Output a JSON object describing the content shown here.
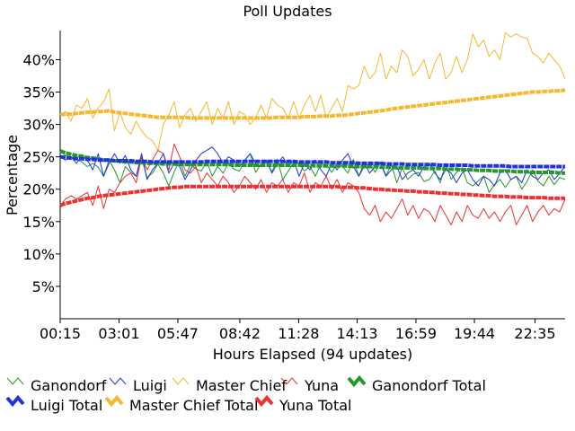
{
  "chart_data": {
    "type": "line",
    "title": "Poll Updates",
    "xlabel": "Hours Elapsed (94 updates)",
    "ylabel": "Percentage",
    "x_tick_labels": [
      "00:15",
      "03:01",
      "05:47",
      "08:42",
      "11:28",
      "14:13",
      "16:59",
      "19:44",
      "22:35"
    ],
    "x_tick_hours": [
      0.25,
      3.0167,
      5.7833,
      8.7,
      11.4667,
      14.2167,
      16.9833,
      19.7333,
      22.5833
    ],
    "x_range_hours": [
      0.25,
      24.0
    ],
    "y_tick_labels": [
      "5%",
      "10%",
      "15%",
      "20%",
      "25%",
      "30%",
      "35%",
      "40%"
    ],
    "y_ticks": [
      5,
      10,
      15,
      20,
      25,
      30,
      35,
      40
    ],
    "ylim": [
      0,
      44.5
    ],
    "grid": false,
    "legend_position": "bottom",
    "series": [
      {
        "name": "Ganondorf",
        "color": "#22992a",
        "style": "thin",
        "values": [
          25.9,
          25.2,
          25.0,
          24.6,
          24.2,
          23.5,
          24.0,
          23.4,
          22.0,
          24.5,
          23.0,
          21.0,
          23.5,
          22.6,
          22.0,
          24.8,
          21.8,
          22.5,
          23.9,
          22.5,
          20.5,
          22.7,
          24.5,
          22.0,
          23.8,
          23.1,
          22.8,
          24.3,
          22.0,
          23.5,
          22.5,
          24.0,
          23.1,
          22.8,
          24.4,
          25.5,
          22.6,
          23.9,
          24.2,
          22.7,
          24.6,
          21.5,
          22.8,
          24.1,
          24.0,
          22.8,
          23.5,
          22.0,
          23.9,
          23.8,
          22.6,
          24.0,
          23.5,
          22.5,
          24.6,
          22.0,
          23.5,
          24.0,
          22.6,
          24.2,
          22.1,
          23.8,
          21.0,
          23.3,
          21.5,
          22.3,
          22.6,
          21.2,
          21.5,
          22.8,
          21.0,
          24.0,
          21.5,
          22.6,
          23.3,
          21.0,
          20.5,
          21.3,
          22.0,
          19.5,
          20.7,
          21.5,
          20.3,
          21.5,
          22.0,
          20.0,
          21.2,
          23.0,
          21.3,
          20.5,
          22.0,
          20.7,
          21.8,
          21.5
        ]
      },
      {
        "name": "Luigi",
        "color": "#2233dd",
        "style": "thin",
        "values": [
          25.0,
          24.5,
          25.0,
          24.0,
          25.2,
          24.5,
          23.0,
          25.5,
          22.0,
          24.0,
          25.5,
          24.0,
          25.2,
          23.0,
          22.0,
          25.5,
          21.5,
          23.0,
          24.0,
          25.5,
          22.5,
          24.0,
          23.5,
          21.5,
          23.0,
          24.5,
          25.5,
          26.0,
          26.5,
          25.5,
          24.0,
          25.0,
          24.5,
          23.5,
          24.5,
          25.5,
          24.0,
          23.5,
          24.5,
          22.5,
          24.0,
          25.0,
          23.5,
          24.5,
          22.0,
          24.0,
          23.0,
          24.5,
          23.0,
          22.0,
          24.0,
          23.0,
          24.5,
          25.5,
          23.5,
          22.0,
          24.0,
          22.5,
          23.5,
          24.0,
          22.0,
          23.0,
          23.5,
          21.5,
          22.5,
          23.0,
          22.0,
          23.5,
          24.0,
          22.5,
          21.5,
          23.0,
          22.5,
          21.0,
          22.5,
          23.0,
          21.5,
          20.5,
          22.0,
          21.5,
          20.5,
          22.5,
          23.0,
          21.5,
          22.0,
          21.0,
          23.0,
          22.0,
          21.5,
          22.5,
          23.0,
          21.5,
          22.5,
          23.5
        ]
      },
      {
        "name": "Master Chief",
        "color": "#f5b830",
        "style": "thin",
        "values": [
          31.5,
          32.0,
          30.5,
          33.0,
          32.5,
          34.0,
          31.0,
          32.5,
          33.5,
          35.5,
          29.0,
          32.0,
          29.5,
          28.5,
          30.5,
          29.0,
          28.0,
          27.5,
          26.0,
          30.0,
          31.5,
          33.5,
          29.5,
          31.5,
          32.5,
          30.5,
          32.0,
          33.5,
          30.0,
          32.5,
          31.0,
          33.5,
          30.0,
          32.0,
          31.5,
          30.0,
          31.0,
          33.0,
          31.0,
          34.0,
          33.0,
          32.5,
          31.0,
          33.5,
          31.0,
          33.0,
          34.5,
          32.0,
          34.5,
          31.0,
          32.5,
          34.0,
          32.0,
          36.0,
          35.5,
          36.0,
          39.0,
          37.0,
          38.0,
          41.0,
          37.0,
          39.0,
          38.0,
          41.5,
          40.5,
          37.5,
          38.5,
          40.0,
          37.0,
          39.5,
          41.0,
          37.0,
          38.0,
          40.5,
          38.0,
          40.0,
          44.0,
          42.0,
          43.0,
          40.5,
          41.5,
          40.0,
          44.2,
          43.5,
          44.0,
          43.5,
          43.3,
          41.0,
          40.5,
          39.5,
          41.0,
          40.0,
          39.0,
          37.0
        ]
      },
      {
        "name": "Yuna",
        "color": "#ee3030",
        "style": "thin",
        "values": [
          17.5,
          18.5,
          19.0,
          18.5,
          19.0,
          19.5,
          17.5,
          20.5,
          17.0,
          20.0,
          19.5,
          21.0,
          22.0,
          22.5,
          21.0,
          25.0,
          23.0,
          24.5,
          26.0,
          25.5,
          23.0,
          27.0,
          25.0,
          23.0,
          22.5,
          23.5,
          21.0,
          22.5,
          21.5,
          20.5,
          22.0,
          21.0,
          19.5,
          20.5,
          22.0,
          21.0,
          20.0,
          21.5,
          19.5,
          21.0,
          20.5,
          21.5,
          19.5,
          21.0,
          20.5,
          22.5,
          19.5,
          21.0,
          20.5,
          22.0,
          20.0,
          21.5,
          19.5,
          21.0,
          20.5,
          19.5,
          17.0,
          16.0,
          17.5,
          15.0,
          16.5,
          15.5,
          17.0,
          18.5,
          16.0,
          17.5,
          15.5,
          17.0,
          16.5,
          15.0,
          17.5,
          16.0,
          14.5,
          16.5,
          15.0,
          17.5,
          16.0,
          15.5,
          17.0,
          15.5,
          16.5,
          15.0,
          16.5,
          17.5,
          14.5,
          16.0,
          17.5,
          15.0,
          16.5,
          17.5,
          16.0,
          17.0,
          16.5,
          18.5
        ]
      },
      {
        "name": "Ganondorf Total",
        "color": "#22992a",
        "style": "thick",
        "values": [
          25.9,
          25.6,
          25.4,
          25.2,
          25.1,
          24.9,
          24.8,
          24.7,
          24.5,
          24.5,
          24.4,
          24.3,
          24.2,
          24.2,
          24.1,
          24.1,
          24.0,
          24.0,
          24.0,
          23.9,
          23.9,
          23.9,
          23.8,
          23.8,
          23.8,
          23.8,
          23.8,
          23.8,
          23.8,
          23.8,
          23.8,
          23.8,
          23.7,
          23.7,
          23.7,
          23.7,
          23.7,
          23.7,
          23.7,
          23.7,
          23.7,
          23.7,
          23.7,
          23.7,
          23.7,
          23.7,
          23.7,
          23.6,
          23.6,
          23.6,
          23.6,
          23.6,
          23.6,
          23.6,
          23.5,
          23.5,
          23.5,
          23.5,
          23.5,
          23.4,
          23.4,
          23.4,
          23.3,
          23.3,
          23.3,
          23.3,
          23.3,
          23.2,
          23.2,
          23.2,
          23.2,
          23.1,
          23.1,
          23.1,
          23.0,
          23.0,
          23.0,
          22.9,
          22.9,
          22.9,
          22.8,
          22.8,
          22.8,
          22.8,
          22.7,
          22.7,
          22.7,
          22.6,
          22.6,
          22.6,
          22.6,
          22.6,
          22.5,
          22.5
        ]
      },
      {
        "name": "Luigi Total",
        "color": "#2233dd",
        "style": "thick",
        "values": [
          25.0,
          24.9,
          24.8,
          24.7,
          24.7,
          24.6,
          24.6,
          24.5,
          24.5,
          24.5,
          24.4,
          24.4,
          24.4,
          24.4,
          24.3,
          24.3,
          24.3,
          24.2,
          24.2,
          24.2,
          24.2,
          24.2,
          24.2,
          24.2,
          24.2,
          24.2,
          24.2,
          24.3,
          24.3,
          24.3,
          24.3,
          24.3,
          24.3,
          24.3,
          24.3,
          24.3,
          24.3,
          24.3,
          24.3,
          24.3,
          24.3,
          24.3,
          24.3,
          24.3,
          24.2,
          24.2,
          24.2,
          24.2,
          24.2,
          24.2,
          24.1,
          24.1,
          24.1,
          24.1,
          24.1,
          24.0,
          24.0,
          24.0,
          24.0,
          24.0,
          23.9,
          23.9,
          23.9,
          23.9,
          23.8,
          23.8,
          23.8,
          23.8,
          23.8,
          23.8,
          23.7,
          23.7,
          23.7,
          23.7,
          23.7,
          23.7,
          23.6,
          23.6,
          23.6,
          23.6,
          23.6,
          23.6,
          23.6,
          23.5,
          23.5,
          23.5,
          23.5,
          23.5,
          23.5,
          23.5,
          23.5,
          23.5,
          23.5,
          23.5
        ]
      },
      {
        "name": "Master Chief Total",
        "color": "#f5b830",
        "style": "thick",
        "values": [
          31.5,
          31.6,
          31.6,
          31.7,
          31.8,
          31.9,
          31.9,
          32.0,
          32.0,
          32.1,
          31.9,
          31.8,
          31.7,
          31.6,
          31.5,
          31.4,
          31.3,
          31.2,
          31.1,
          31.1,
          31.1,
          31.1,
          31.1,
          31.1,
          31.0,
          31.0,
          31.0,
          31.0,
          31.0,
          31.0,
          31.0,
          31.0,
          31.0,
          31.0,
          31.0,
          31.0,
          31.0,
          31.0,
          31.0,
          31.0,
          31.1,
          31.1,
          31.1,
          31.1,
          31.1,
          31.2,
          31.2,
          31.2,
          31.3,
          31.3,
          31.3,
          31.4,
          31.4,
          31.5,
          31.6,
          31.7,
          31.8,
          31.9,
          32.0,
          32.1,
          32.2,
          32.4,
          32.5,
          32.6,
          32.7,
          32.8,
          32.9,
          33.0,
          33.1,
          33.2,
          33.3,
          33.4,
          33.5,
          33.6,
          33.7,
          33.8,
          33.9,
          34.0,
          34.1,
          34.2,
          34.3,
          34.4,
          34.5,
          34.6,
          34.7,
          34.8,
          34.9,
          35.0,
          35.0,
          35.1,
          35.1,
          35.2,
          35.2,
          35.3
        ]
      },
      {
        "name": "Yuna Total",
        "color": "#ee3030",
        "style": "thick",
        "values": [
          17.5,
          17.8,
          18.0,
          18.2,
          18.4,
          18.6,
          18.7,
          18.9,
          19.0,
          19.1,
          19.2,
          19.3,
          19.4,
          19.5,
          19.6,
          19.7,
          19.8,
          19.9,
          20.0,
          20.1,
          20.2,
          20.3,
          20.3,
          20.4,
          20.4,
          20.4,
          20.4,
          20.4,
          20.4,
          20.4,
          20.4,
          20.4,
          20.4,
          20.4,
          20.4,
          20.4,
          20.4,
          20.4,
          20.4,
          20.4,
          20.4,
          20.4,
          20.4,
          20.4,
          20.4,
          20.4,
          20.4,
          20.4,
          20.4,
          20.4,
          20.4,
          20.4,
          20.3,
          20.3,
          20.3,
          20.2,
          20.2,
          20.1,
          20.0,
          20.0,
          19.9,
          19.9,
          19.8,
          19.8,
          19.7,
          19.7,
          19.6,
          19.6,
          19.5,
          19.5,
          19.4,
          19.4,
          19.3,
          19.3,
          19.2,
          19.2,
          19.1,
          19.1,
          19.0,
          19.0,
          18.9,
          18.9,
          18.9,
          18.8,
          18.8,
          18.8,
          18.7,
          18.7,
          18.7,
          18.7,
          18.6,
          18.6,
          18.6,
          18.6
        ]
      }
    ]
  }
}
